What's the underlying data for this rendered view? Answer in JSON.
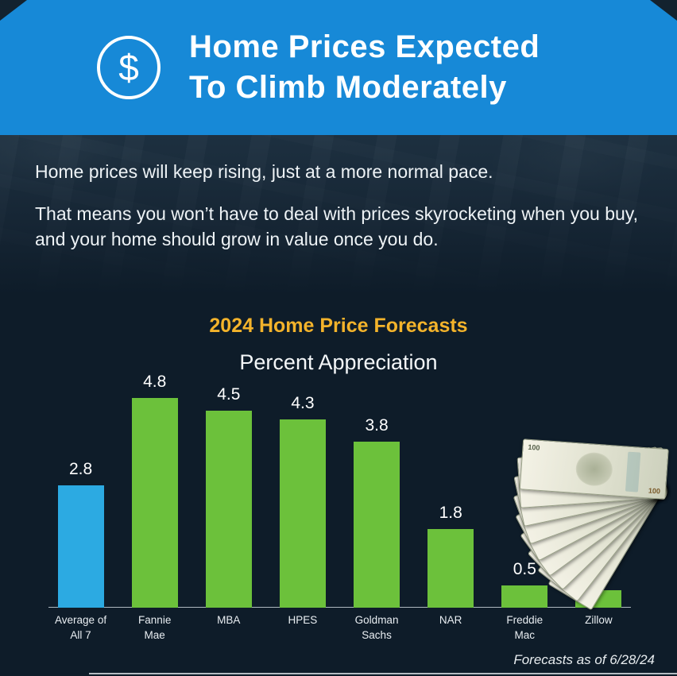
{
  "header": {
    "title_line1": "Home Prices Expected",
    "title_line2": "To Climb Moderately",
    "icon_glyph": "$",
    "bg_color": "#1789d7"
  },
  "intro": {
    "line1": "Home prices will keep rising, just at a more normal pace.",
    "line2": "That means you won’t have to deal with prices skyrocketing when you buy, and your home should grow in value once you do."
  },
  "chart_data": {
    "type": "bar",
    "title": "2024 Home Price Forecasts",
    "subtitle": "Percent Appreciation",
    "categories": [
      [
        "Average of",
        "All 7"
      ],
      [
        "Fannie",
        "Mae"
      ],
      [
        "MBA"
      ],
      [
        "HPES"
      ],
      [
        "Goldman",
        "Sachs"
      ],
      [
        "NAR"
      ],
      [
        "Freddie",
        "Mac"
      ],
      [
        "Zillow"
      ]
    ],
    "values": [
      2.8,
      4.8,
      4.5,
      4.3,
      3.8,
      1.8,
      0.5,
      0.4
    ],
    "bar_colors": [
      "#2caae2",
      "#6cc13b",
      "#6cc13b",
      "#6cc13b",
      "#6cc13b",
      "#6cc13b",
      "#6cc13b",
      "#6cc13b"
    ],
    "xlabel": "",
    "ylabel": "",
    "ylim": [
      0,
      5
    ],
    "grid": false,
    "legend": false,
    "value_label_color": "#ffffff",
    "title_color": "#f3b32b"
  },
  "money": {
    "denomination": "100"
  },
  "footer": {
    "note": "Forecasts as of 6/28/24"
  }
}
